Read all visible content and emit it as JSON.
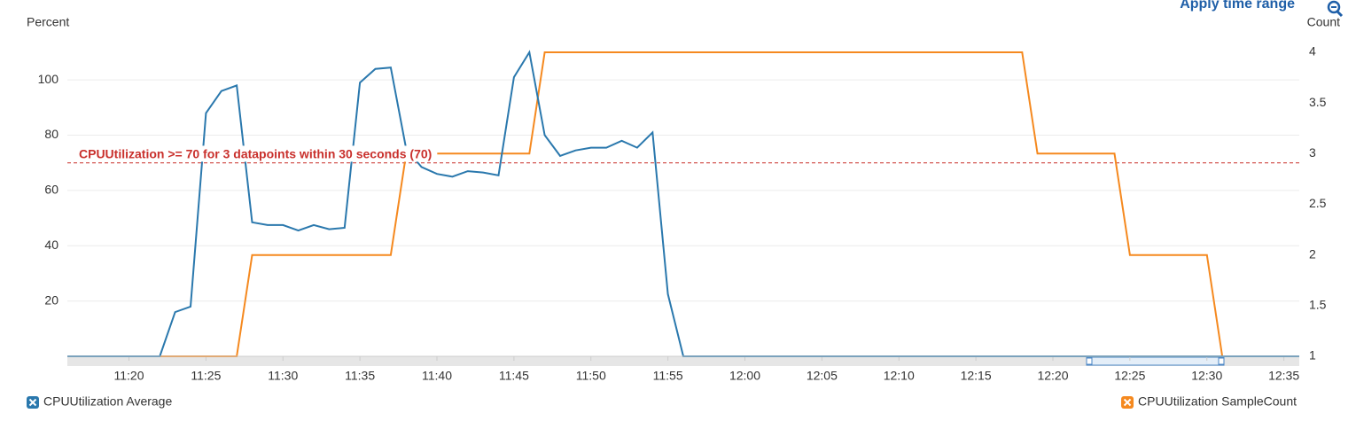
{
  "chart_data": {
    "type": "line",
    "action": "Apply time range",
    "ylabel": "Percent",
    "y2label": "Count",
    "x": [
      "11:16",
      "11:17",
      "11:18",
      "11:19",
      "11:20",
      "11:21",
      "11:22",
      "11:23",
      "11:24",
      "11:25",
      "11:26",
      "11:27",
      "11:28",
      "11:29",
      "11:30",
      "11:31",
      "11:32",
      "11:33",
      "11:34",
      "11:35",
      "11:36",
      "11:37",
      "11:38",
      "11:39",
      "11:40",
      "11:41",
      "11:42",
      "11:43",
      "11:44",
      "11:45",
      "11:46",
      "11:47",
      "11:48",
      "11:49",
      "11:50",
      "11:51",
      "11:52",
      "11:53",
      "11:54",
      "11:55",
      "11:56",
      "11:57",
      "11:58",
      "11:59",
      "12:00",
      "12:01",
      "12:02",
      "12:03",
      "12:04",
      "12:05",
      "12:06",
      "12:07",
      "12:08",
      "12:09",
      "12:10",
      "12:11",
      "12:12",
      "12:13",
      "12:14",
      "12:15",
      "12:16",
      "12:17",
      "12:18",
      "12:19",
      "12:20",
      "12:21",
      "12:22",
      "12:23",
      "12:24",
      "12:25",
      "12:26",
      "12:27",
      "12:28",
      "12:29",
      "12:30",
      "12:31",
      "12:32",
      "12:33",
      "12:34",
      "12:35",
      "12:36"
    ],
    "series": [
      {
        "name": "CPUUtilization Average",
        "color": "#2a78ad",
        "axis": "y",
        "values": [
          0,
          0,
          0,
          0,
          0,
          0,
          0,
          16,
          18,
          88,
          96,
          98,
          48.5,
          47.5,
          47.5,
          45.5,
          47.5,
          46,
          46.5,
          99,
          104,
          104.5,
          75,
          68.5,
          66,
          65,
          67,
          66.5,
          65.5,
          101,
          110,
          80,
          72.5,
          74.5,
          75.5,
          75.5,
          78,
          75.5,
          81,
          22.5,
          0,
          0,
          0,
          0,
          0,
          0,
          0,
          0,
          0,
          0,
          0,
          0,
          0,
          0,
          0,
          0,
          0,
          0,
          0,
          0,
          0,
          0,
          0,
          0,
          0,
          0,
          0,
          0,
          0,
          0,
          0,
          0,
          0,
          0,
          0,
          0,
          0,
          0,
          0,
          0,
          0
        ]
      },
      {
        "name": "CPUUtilization SampleCount",
        "color": "#f5891f",
        "axis": "y2",
        "values": [
          1,
          1,
          1,
          1,
          1,
          1,
          1,
          1,
          1,
          1,
          1,
          1,
          2,
          2,
          2,
          2,
          2,
          2,
          2,
          2,
          2,
          2,
          3,
          3,
          3,
          3,
          3,
          3,
          3,
          3,
          3,
          4,
          4,
          4,
          4,
          4,
          4,
          4,
          4,
          4,
          4,
          4,
          4,
          4,
          4,
          4,
          4,
          4,
          4,
          4,
          4,
          4,
          4,
          4,
          4,
          4,
          4,
          4,
          4,
          4,
          4,
          4,
          4,
          3,
          3,
          3,
          3,
          3,
          3,
          2,
          2,
          2,
          2,
          2,
          2,
          1,
          1,
          1,
          1,
          1,
          1
        ]
      }
    ],
    "xlim": [
      "11:16",
      "12:36"
    ],
    "xticks": [
      "11:20",
      "11:25",
      "11:30",
      "11:35",
      "11:40",
      "11:45",
      "11:50",
      "11:55",
      "12:00",
      "12:05",
      "12:10",
      "12:15",
      "12:20",
      "12:25",
      "12:30",
      "12:35"
    ],
    "ylim": [
      0,
      110
    ],
    "yticks": [
      20,
      40,
      60,
      80,
      100
    ],
    "y2lim": [
      1,
      4
    ],
    "y2ticks": [
      1,
      1.5,
      2,
      2.5,
      3,
      3.5,
      4
    ],
    "grid": true,
    "annotations": [
      {
        "label": "CPUUtilization >= 70 for 3 datapoints within 30 seconds (70)",
        "value": 70,
        "color": "#c9302c"
      }
    ]
  }
}
